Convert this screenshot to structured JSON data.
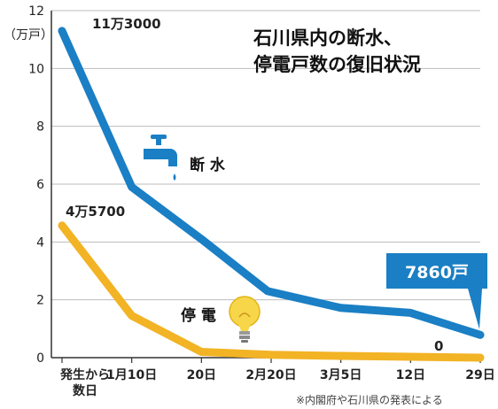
{
  "chart_data": {
    "type": "line",
    "title_lines": [
      "石川県内の断水、",
      "停電戸数の復旧状況"
    ],
    "unit_label": "（万戸）",
    "ylim": [
      0,
      12
    ],
    "yticks": [
      "0",
      "2",
      "4",
      "6",
      "8",
      "10",
      "12"
    ],
    "categories": [
      "発生から\n数日",
      "1月10日",
      "20日",
      "2月20日",
      "3月5日",
      "12日",
      "29日"
    ],
    "x": [
      0,
      1,
      2,
      3,
      4,
      5,
      6
    ],
    "series": [
      {
        "name": "断 水",
        "color": "#1a7fc4",
        "points": [
          [
            0,
            11.3
          ],
          [
            1,
            5.9
          ],
          [
            2,
            4.1
          ],
          [
            2.95,
            2.3
          ],
          [
            4,
            1.72
          ],
          [
            5,
            1.55
          ],
          [
            6,
            0.786
          ]
        ],
        "start_label": "11万3000",
        "end_label": "7860戸",
        "icon": "faucet-icon"
      },
      {
        "name": "停 電",
        "color": "#f2b325",
        "points": [
          [
            0,
            4.57
          ],
          [
            1,
            1.45
          ],
          [
            2,
            0.2
          ],
          [
            3,
            0.1
          ],
          [
            4,
            0.06
          ],
          [
            5,
            0.03
          ],
          [
            6,
            0
          ]
        ],
        "start_label": "4万5700",
        "end_label": "0",
        "icon": "lightbulb-icon"
      }
    ],
    "source": "※内閣府や石川県の発表による",
    "grid": true,
    "legend": "inline labels"
  }
}
